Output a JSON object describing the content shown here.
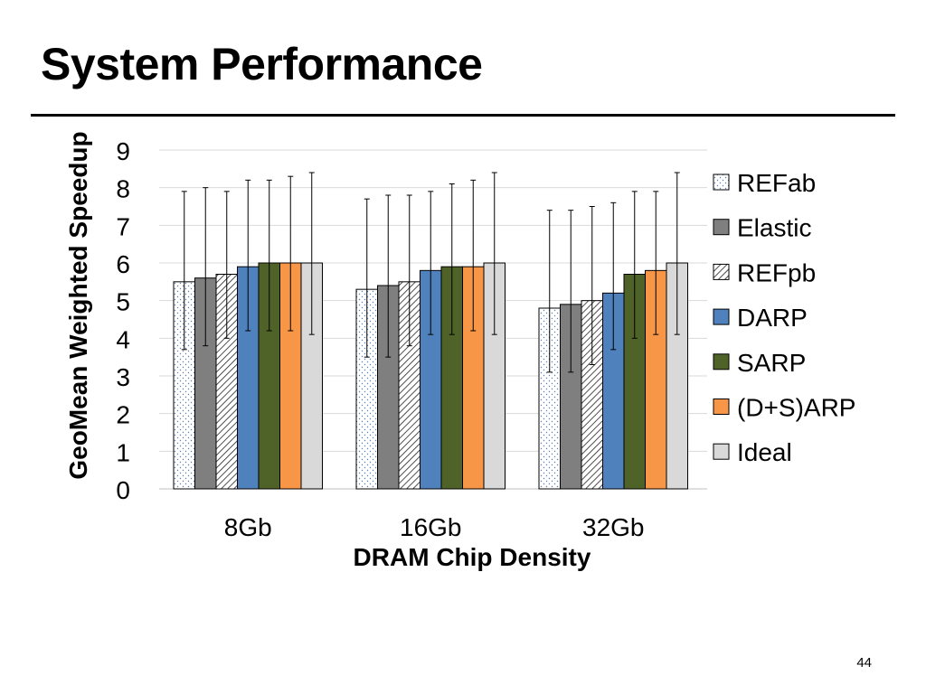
{
  "slide": {
    "title": "System Performance",
    "page_number": "44"
  },
  "chart_data": {
    "type": "bar",
    "title": "",
    "xlabel": "DRAM Chip Density",
    "ylabel": "GeoMean Weighted Speedup",
    "categories": [
      "8Gb",
      "16Gb",
      "32Gb"
    ],
    "ylim": [
      0,
      9
    ],
    "yticks": [
      "0",
      "1",
      "2",
      "3",
      "4",
      "5",
      "6",
      "7",
      "8",
      "9"
    ],
    "legend_position": "right",
    "series": [
      {
        "name": "REFab",
        "values": [
          5.5,
          5.3,
          4.8
        ],
        "err_low": [
          3.7,
          3.5,
          3.1
        ],
        "err_high": [
          7.9,
          7.7,
          7.4
        ],
        "color": "#ffffff",
        "pattern": "dots"
      },
      {
        "name": "Elastic",
        "values": [
          5.6,
          5.4,
          4.9
        ],
        "err_low": [
          3.8,
          3.5,
          3.1
        ],
        "err_high": [
          8.0,
          7.8,
          7.4
        ],
        "color": "#7f7f7f",
        "pattern": "solid"
      },
      {
        "name": "REFpb",
        "values": [
          5.7,
          5.5,
          5.0
        ],
        "err_low": [
          4.0,
          3.8,
          3.3
        ],
        "err_high": [
          7.9,
          7.8,
          7.5
        ],
        "color": "#ffffff",
        "pattern": "hatch"
      },
      {
        "name": "DARP",
        "values": [
          5.9,
          5.8,
          5.2
        ],
        "err_low": [
          4.2,
          4.1,
          3.7
        ],
        "err_high": [
          8.2,
          7.9,
          7.6
        ],
        "color": "#4f81bd",
        "pattern": "solid"
      },
      {
        "name": "SARP",
        "values": [
          6.0,
          5.9,
          5.7
        ],
        "err_low": [
          4.2,
          4.1,
          4.0
        ],
        "err_high": [
          8.2,
          8.1,
          7.9
        ],
        "color": "#4f6228",
        "pattern": "solid"
      },
      {
        "name": "(D+S)ARP",
        "values": [
          6.0,
          5.9,
          5.8
        ],
        "err_low": [
          4.2,
          4.2,
          4.1
        ],
        "err_high": [
          8.3,
          8.2,
          7.9
        ],
        "color": "#f79646",
        "pattern": "solid"
      },
      {
        "name": "Ideal",
        "values": [
          6.0,
          6.0,
          6.0
        ],
        "err_low": [
          4.1,
          4.1,
          4.1
        ],
        "err_high": [
          8.4,
          8.4,
          8.4
        ],
        "color": "#d9d9d9",
        "pattern": "solid"
      }
    ]
  }
}
